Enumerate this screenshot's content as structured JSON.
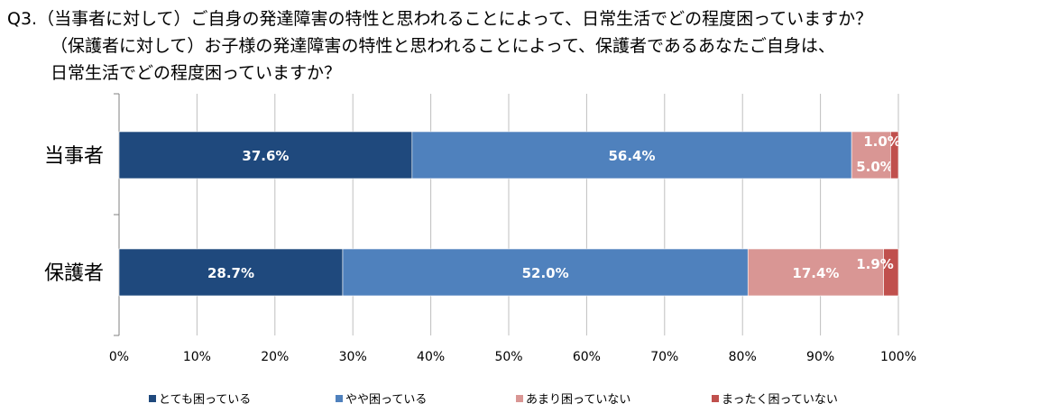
{
  "question": {
    "lines": [
      "Q3.（当事者に対して）ご自身の発達障害の特性と思われることによって、日常生活でどの程度困っていますか？",
      "（保護者に対して）お子様の発達障害の特性と思われることによって、保護者であるあなたご自身は、",
      "日常生活でどの程度困っていますか？"
    ]
  },
  "chart_data": {
    "type": "bar",
    "orientation": "horizontal",
    "stacked": true,
    "categories": [
      "当事者",
      "保護者"
    ],
    "series": [
      {
        "name": "とても困っている",
        "color": "#1F497D",
        "values": [
          37.6,
          28.7
        ],
        "labels": [
          "37.6%",
          "28.7%"
        ]
      },
      {
        "name": "やや困っている",
        "color": "#4F81BD",
        "values": [
          56.4,
          52.0
        ],
        "labels": [
          "56.4%",
          "52.0%"
        ]
      },
      {
        "name": "あまり困っていない",
        "color": "#D99694",
        "values": [
          5.0,
          17.4
        ],
        "labels": [
          "5.0%",
          "17.4%"
        ]
      },
      {
        "name": "まったく困っていない",
        "color": "#C0504D",
        "values": [
          1.0,
          1.9
        ],
        "labels": [
          "1.0%",
          "1.9%"
        ]
      }
    ],
    "xlim": [
      0,
      100
    ],
    "xticks": [
      "0%",
      "10%",
      "20%",
      "30%",
      "40%",
      "50%",
      "60%",
      "70%",
      "80%",
      "90%",
      "100%"
    ],
    "grid": true,
    "legend": "bottom"
  }
}
